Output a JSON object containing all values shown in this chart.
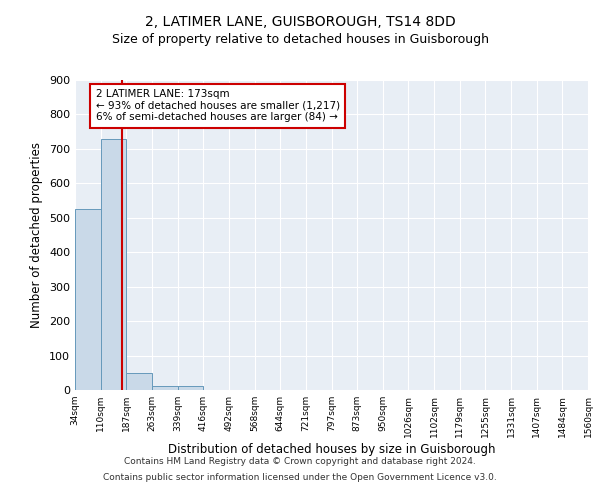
{
  "title_line1": "2, LATIMER LANE, GUISBOROUGH, TS14 8DD",
  "title_line2": "Size of property relative to detached houses in Guisborough",
  "xlabel": "Distribution of detached houses by size in Guisborough",
  "ylabel": "Number of detached properties",
  "bin_edges": [
    34,
    110,
    187,
    263,
    339,
    416,
    492,
    568,
    644,
    721,
    797,
    873,
    950,
    1026,
    1102,
    1179,
    1255,
    1331,
    1407,
    1484,
    1560
  ],
  "bar_values": [
    525,
    730,
    48,
    12,
    12,
    0,
    0,
    0,
    0,
    0,
    0,
    0,
    0,
    0,
    0,
    0,
    0,
    0,
    0,
    0
  ],
  "bar_color": "#c9d9e8",
  "bar_edge_color": "#6699bb",
  "property_size": 173,
  "annotation_line1": "2 LATIMER LANE: 173sqm",
  "annotation_line2": "← 93% of detached houses are smaller (1,217)",
  "annotation_line3": "6% of semi-detached houses are larger (84) →",
  "vline_color": "#cc0000",
  "annotation_box_color": "#cc0000",
  "ylim": [
    0,
    900
  ],
  "yticks": [
    0,
    100,
    200,
    300,
    400,
    500,
    600,
    700,
    800,
    900
  ],
  "bg_color": "#e8eef5",
  "footer_line1": "Contains HM Land Registry data © Crown copyright and database right 2024.",
  "footer_line2": "Contains public sector information licensed under the Open Government Licence v3.0.",
  "title_fontsize": 10,
  "subtitle_fontsize": 9,
  "footer_fontsize": 6.5
}
